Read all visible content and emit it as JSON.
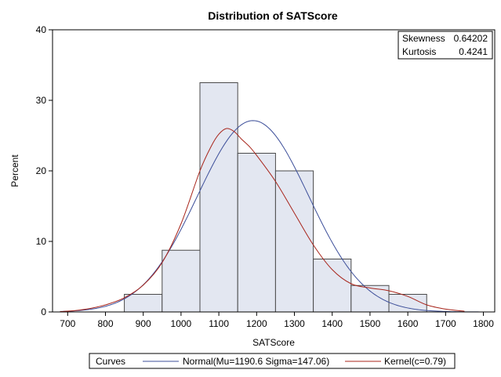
{
  "chart_data": {
    "type": "histogram",
    "title": "Distribution of SATScore",
    "xlabel": "SATScore",
    "ylabel": "Percent",
    "xlim": [
      660,
      1830
    ],
    "ylim": [
      0,
      40
    ],
    "x_ticks": [
      700,
      800,
      900,
      1000,
      1100,
      1200,
      1300,
      1400,
      1500,
      1600,
      1700,
      1800
    ],
    "y_ticks": [
      0,
      10,
      20,
      30,
      40
    ],
    "bins": [
      {
        "left": 850,
        "right": 950,
        "value": 2.5
      },
      {
        "left": 950,
        "right": 1050,
        "value": 8.75
      },
      {
        "left": 1050,
        "right": 1150,
        "value": 32.5
      },
      {
        "left": 1150,
        "right": 1250,
        "value": 22.5
      },
      {
        "left": 1250,
        "right": 1350,
        "value": 20.0
      },
      {
        "left": 1350,
        "right": 1450,
        "value": 7.5
      },
      {
        "left": 1450,
        "right": 1550,
        "value": 3.75
      },
      {
        "left": 1550,
        "right": 1650,
        "value": 2.5
      }
    ],
    "bar_fill": "#e3e7f1",
    "bar_stroke": "#4a4a4a",
    "normal_curve": {
      "name": "Normal(Mu=1190.6 Sigma=147.06)",
      "mu": 1190.6,
      "sigma": 147.06,
      "bin_width": 100,
      "color": "#3d4f9a"
    },
    "kernel_curve": {
      "name": "Kernel(c=0.79)",
      "color": "#a8251b",
      "x": [
        680,
        720,
        760,
        800,
        850,
        900,
        950,
        1000,
        1050,
        1080,
        1100,
        1120,
        1140,
        1160,
        1180,
        1200,
        1250,
        1300,
        1350,
        1400,
        1450,
        1500,
        1550,
        1600,
        1650,
        1700,
        1750
      ],
      "y": [
        0.05,
        0.2,
        0.5,
        1.0,
        2.0,
        3.8,
        7.0,
        12.5,
        20.0,
        23.5,
        25.2,
        26.0,
        25.6,
        24.5,
        23.5,
        22.2,
        18.5,
        14.0,
        9.5,
        6.0,
        4.0,
        3.4,
        3.0,
        2.2,
        1.0,
        0.4,
        0.1
      ]
    },
    "inset": [
      {
        "label": "Skewness",
        "value": "0.64202"
      },
      {
        "label": "Kurtosis",
        "value": "0.4241"
      }
    ],
    "legend": {
      "title": "Curves",
      "position": "bottom"
    },
    "grid": false
  }
}
